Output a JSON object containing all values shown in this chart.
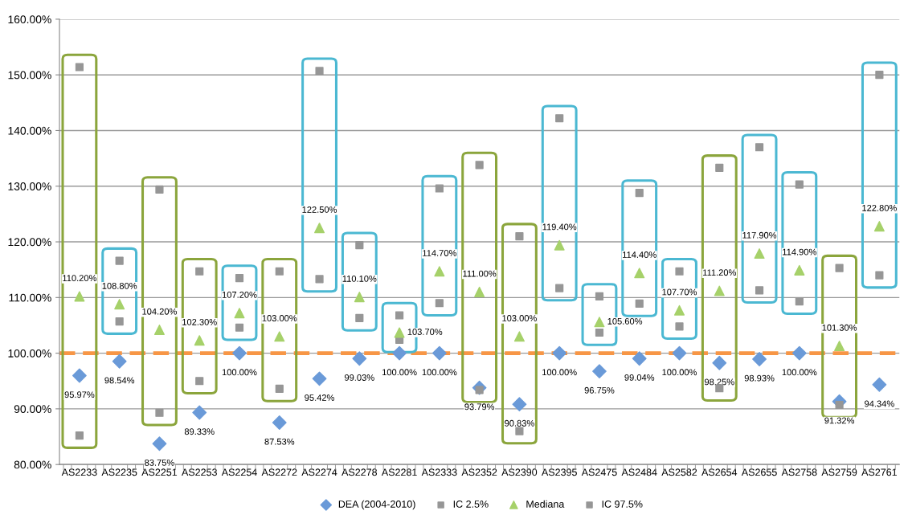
{
  "chart_data": {
    "type": "scatter",
    "categories": [
      "AS2233",
      "AS2235",
      "AS2251",
      "AS2253",
      "AS2254",
      "AS2272",
      "AS2274",
      "AS2278",
      "AS2281",
      "AS2333",
      "AS2352",
      "AS2390",
      "AS2395",
      "AS2475",
      "AS2484",
      "AS2582",
      "AS2654",
      "AS2655",
      "AS2758",
      "AS2759",
      "AS2761"
    ],
    "series": [
      {
        "name": "DEA (2004-2010)",
        "color": "#6a9ad8",
        "marker": "diamond",
        "values": [
          95.97,
          98.54,
          83.75,
          89.33,
          100.0,
          87.53,
          95.42,
          99.03,
          100.0,
          100.0,
          93.79,
          90.83,
          100.0,
          96.75,
          99.04,
          100.0,
          98.25,
          98.93,
          100.0,
          91.32,
          94.34
        ],
        "value_labels": [
          "95.97%",
          "98.54%",
          "83.75%",
          "89.33%",
          "100.00%",
          "87.53%",
          "95.42%",
          "99.03%",
          "100.00%",
          "100.00%",
          "93.79%",
          "90.83%",
          "100.00%",
          "96.75%",
          "99.04%",
          "100.00%",
          "98.25%",
          "98.93%",
          "100.00%",
          "91.32%",
          "94.34%"
        ]
      },
      {
        "name": "IC 2.5%",
        "color": "#969696",
        "marker": "square",
        "values": [
          85.2,
          105.7,
          89.3,
          95.0,
          104.6,
          93.6,
          113.3,
          106.3,
          102.4,
          109.0,
          93.4,
          86.0,
          111.7,
          103.7,
          108.9,
          104.8,
          93.7,
          111.3,
          109.3,
          90.7,
          114.0
        ]
      },
      {
        "name": "Mediana",
        "color": "#a6d16a",
        "marker": "triangle",
        "values": [
          110.2,
          108.8,
          104.2,
          102.3,
          107.2,
          103.0,
          122.5,
          110.1,
          103.7,
          114.7,
          111.0,
          103.0,
          119.4,
          105.6,
          114.4,
          107.7,
          111.2,
          117.9,
          114.9,
          101.3,
          122.8
        ],
        "value_labels": [
          "110.20%",
          "108.80%",
          "104.20%",
          "102.30%",
          "107.20%",
          "103.00%",
          "122.50%",
          "110.10%",
          "103.70%",
          "114.70%",
          "111.00%",
          "103.00%",
          "119.40%",
          "105.60%",
          "114.40%",
          "107.70%",
          "111.20%",
          "117.90%",
          "114.90%",
          "101.30%",
          "122.80%"
        ]
      },
      {
        "name": "IC 97.5%",
        "color": "#969696",
        "marker": "square",
        "values": [
          151.4,
          116.6,
          129.4,
          114.7,
          113.5,
          114.7,
          150.7,
          119.4,
          106.8,
          129.6,
          133.8,
          121.0,
          142.2,
          110.2,
          128.8,
          114.7,
          133.3,
          137.0,
          130.3,
          115.3,
          150.0
        ]
      }
    ],
    "ylim": [
      80,
      160
    ],
    "yticks": [
      {
        "value": 80,
        "label": "80.00%"
      },
      {
        "value": 90,
        "label": "90.00%"
      },
      {
        "value": 100,
        "label": "100.00%"
      },
      {
        "value": 110,
        "label": "110.00%"
      },
      {
        "value": 120,
        "label": "120.00%"
      },
      {
        "value": 130,
        "label": "130.00%"
      },
      {
        "value": 140,
        "label": "140.00%"
      },
      {
        "value": 150,
        "label": "150.00%"
      },
      {
        "value": 160,
        "label": "160.00%"
      }
    ],
    "ref_lines": [
      {
        "axis": "y",
        "value": 100,
        "color": "#f79646",
        "line_style": "dashed"
      }
    ],
    "grid": "y",
    "legend": "bottom"
  }
}
